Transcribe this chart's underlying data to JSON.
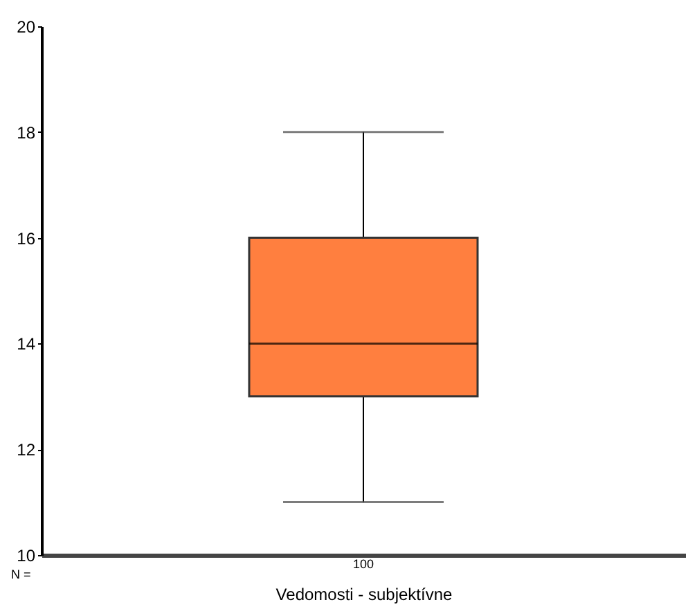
{
  "chart_data": {
    "type": "box",
    "xlabel": "Vedomosti - subjektívne",
    "categories": [
      "100"
    ],
    "boxes": [
      {
        "low": 11,
        "q1": 13,
        "median": 14,
        "q3": 16,
        "high": 18
      }
    ],
    "color": "#ff7f3f",
    "ylim": [
      10,
      20
    ],
    "yticks": [
      10,
      12,
      14,
      16,
      18,
      20
    ],
    "grid": false,
    "annotations": [
      "N ="
    ]
  }
}
